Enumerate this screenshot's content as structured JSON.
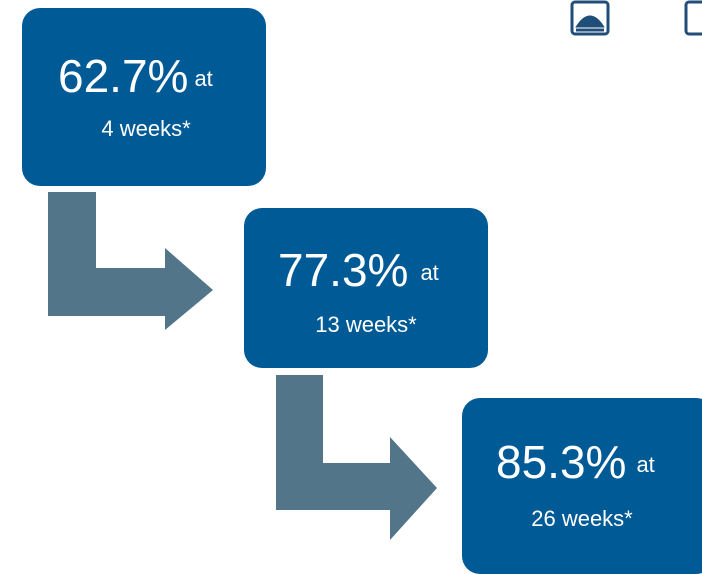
{
  "steps": [
    {
      "value": "62.7%",
      "connector": "at",
      "period": "4 weeks*"
    },
    {
      "value": "77.3%",
      "connector": "at",
      "period": "13 weeks*"
    },
    {
      "value": "85.3%",
      "connector": "at",
      "period": "26 weeks*"
    }
  ]
}
